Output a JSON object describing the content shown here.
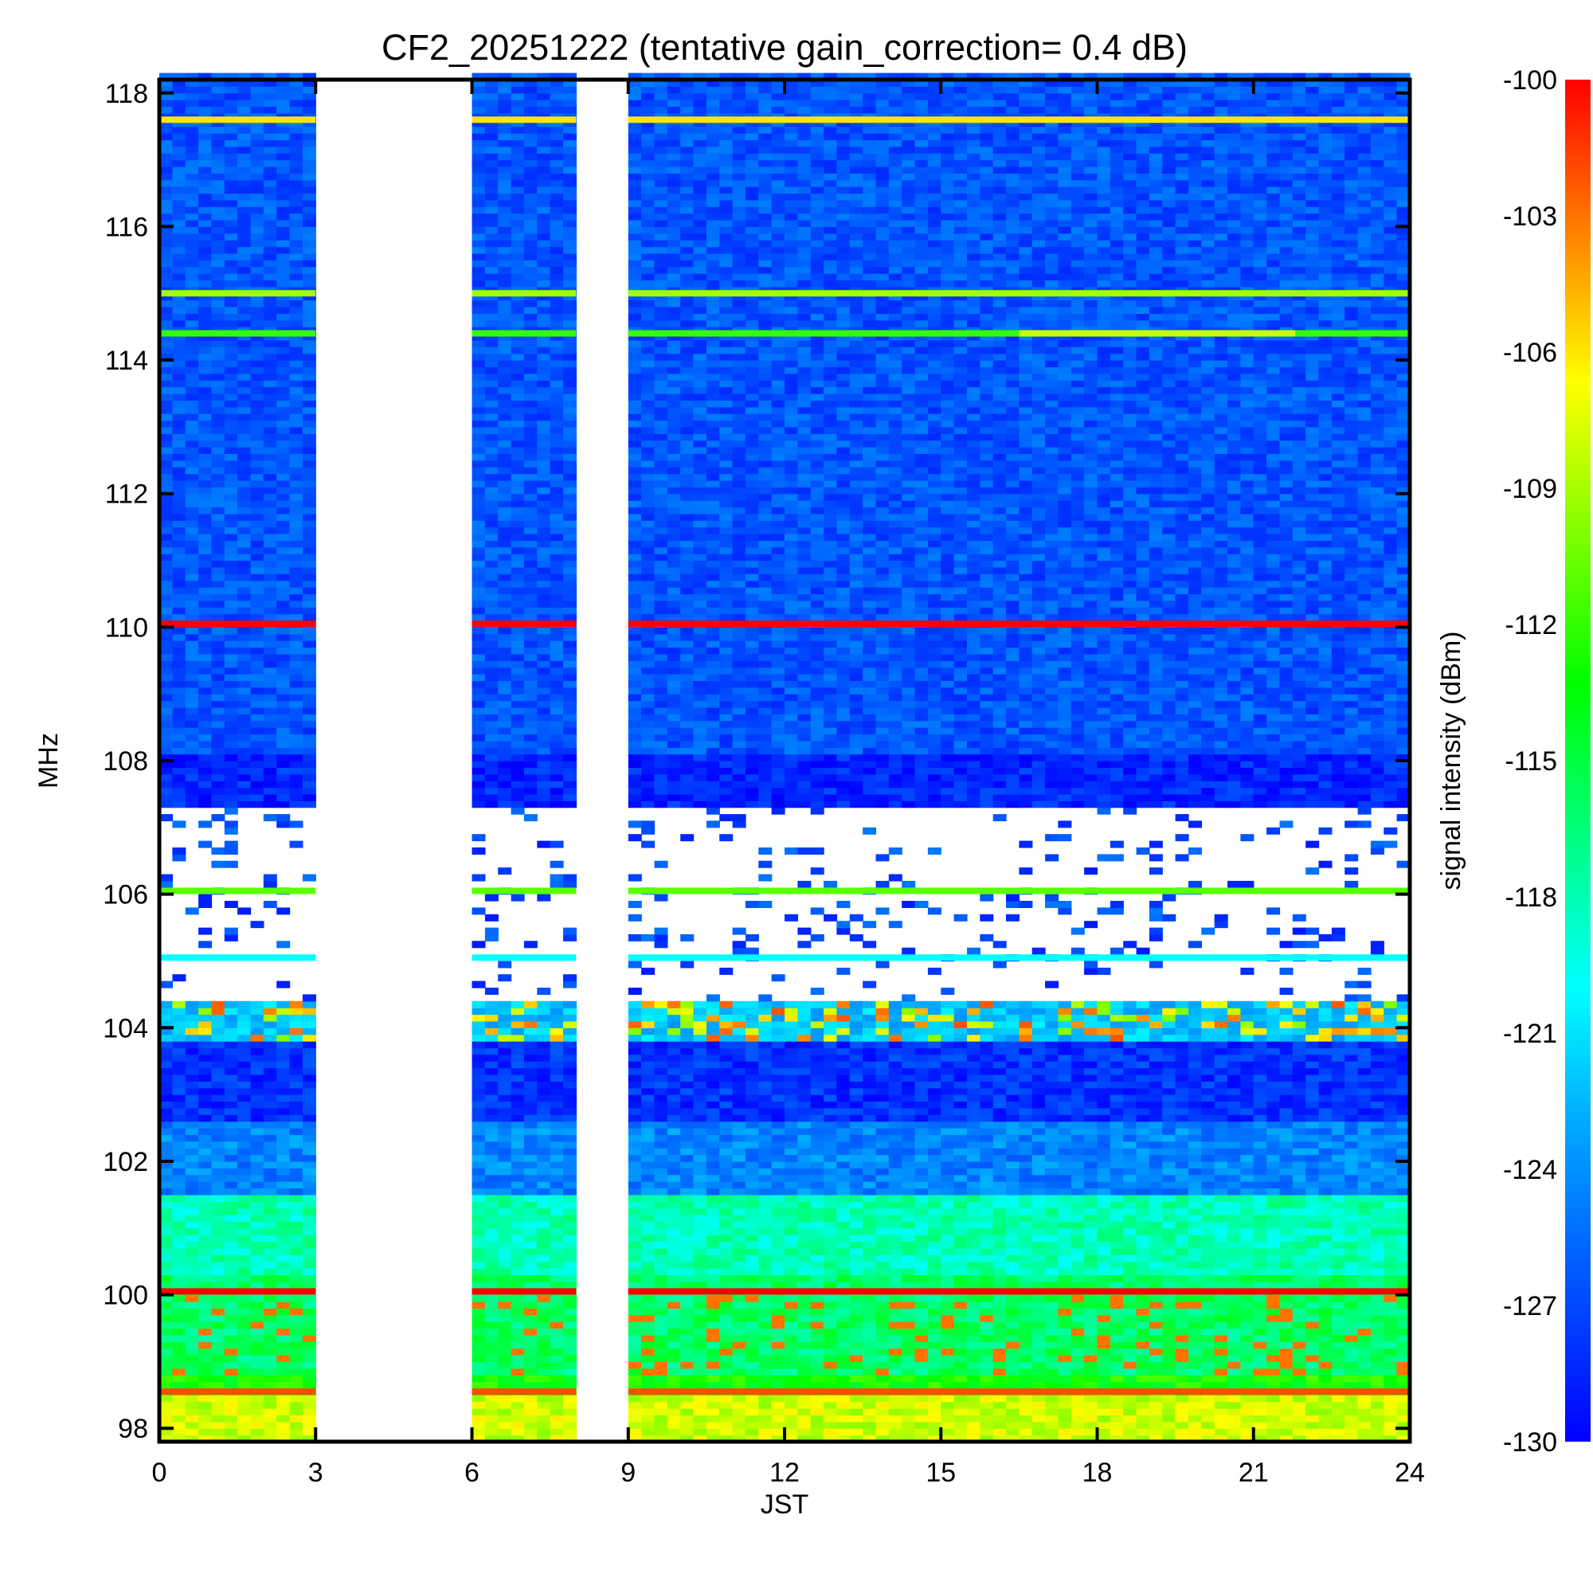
{
  "chart_data": {
    "type": "heatmap",
    "title": "CF2_20251222 (tentative gain_correction=  0.4 dB)",
    "xlabel": "JST",
    "ylabel": "MHz",
    "colorbar_label": "signal intensity (dBm)",
    "xlim": [
      0,
      24
    ],
    "ylim": [
      97.8,
      118.2
    ],
    "clim": [
      -130,
      -100
    ],
    "x_ticks": [
      0,
      3,
      6,
      9,
      12,
      15,
      18,
      21,
      24
    ],
    "x_tick_labels": [
      "0",
      "3",
      "6",
      "9",
      "12",
      "15",
      "18",
      "21",
      "24"
    ],
    "y_ticks": [
      98,
      100,
      102,
      104,
      106,
      108,
      110,
      112,
      114,
      116,
      118
    ],
    "y_tick_labels": [
      "98",
      "100",
      "102",
      "104",
      "106",
      "108",
      "110",
      "112",
      "114",
      "116",
      "118"
    ],
    "colorbar_ticks": [
      -100,
      -103,
      -106,
      -109,
      -112,
      -115,
      -118,
      -121,
      -124,
      -127,
      -130
    ],
    "colorbar_tick_labels": [
      "-100",
      "-103",
      "-106",
      "-109",
      "-112",
      "-115",
      "-118",
      "-121",
      "-124",
      "-127",
      "-130"
    ],
    "colormap": [
      "#0000ff",
      "#0050ff",
      "#00a0ff",
      "#00ffff",
      "#00ff80",
      "#00ff00",
      "#80ff00",
      "#ffff00",
      "#ff8000",
      "#ff0000"
    ],
    "data_gaps_hours": [
      [
        3,
        6
      ],
      [
        8,
        9
      ]
    ],
    "strong_lines": [
      {
        "freq_mhz": 117.6,
        "level_dbm": -106,
        "x_range": [
          0,
          24
        ]
      },
      {
        "freq_mhz": 115.0,
        "level_dbm": -109,
        "x_range": [
          0,
          24
        ]
      },
      {
        "freq_mhz": 114.4,
        "level_dbm": -112,
        "x_range": [
          0,
          24
        ]
      },
      {
        "freq_mhz": 114.4,
        "level_dbm": -108,
        "x_range": [
          16.5,
          21.8
        ]
      },
      {
        "freq_mhz": 110.05,
        "level_dbm": -100,
        "x_range": [
          0,
          24
        ]
      },
      {
        "freq_mhz": 106.05,
        "level_dbm": -111,
        "x_range": [
          0,
          24
        ]
      },
      {
        "freq_mhz": 105.05,
        "level_dbm": -120,
        "x_range": [
          0,
          24
        ]
      },
      {
        "freq_mhz": 100.05,
        "level_dbm": -100,
        "x_range": [
          0,
          24
        ]
      },
      {
        "freq_mhz": 98.55,
        "level_dbm": -102,
        "x_range": [
          0,
          24
        ]
      }
    ],
    "band_profile": [
      {
        "freq_range": [
          108.1,
          118.2
        ],
        "level_dbm": -127
      },
      {
        "freq_range": [
          107.3,
          108.1
        ],
        "level_dbm": -129
      },
      {
        "freq_range": [
          106.2,
          107.3
        ],
        "level_dbm": "sparse -128"
      },
      {
        "freq_range": [
          104.4,
          106.2
        ],
        "level_dbm": "mostly below floor"
      },
      {
        "freq_range": [
          103.8,
          104.4
        ],
        "level_dbm": "mixed -128 to -105"
      },
      {
        "freq_range": [
          102.6,
          103.8
        ],
        "level_dbm": -128
      },
      {
        "freq_range": [
          101.5,
          102.6
        ],
        "level_dbm": -124
      },
      {
        "freq_range": [
          100.3,
          101.5
        ],
        "level_dbm": -118
      },
      {
        "freq_range": [
          98.8,
          100.0
        ],
        "level_dbm": -116
      },
      {
        "freq_range": [
          97.8,
          98.5
        ],
        "level_dbm": -108
      }
    ]
  }
}
